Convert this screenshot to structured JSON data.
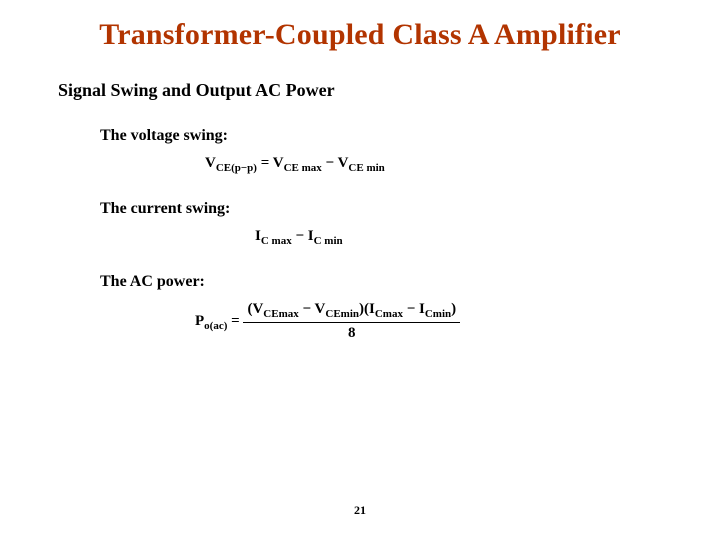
{
  "title": {
    "text": "Transformer-Coupled Class A Amplifier",
    "color": "#b23400"
  },
  "subtitle": "Signal Swing and Output AC Power",
  "items": [
    {
      "label": "The voltage swing:"
    },
    {
      "label": "The current swing:"
    },
    {
      "label": "The AC power:"
    }
  ],
  "formulas": {
    "voltage": {
      "lhs_base": "V",
      "lhs_sub": "CE(p−p)",
      "eq": " = ",
      "t1_base": "V",
      "t1_sub": "CE max",
      "minus": " − ",
      "t2_base": "V",
      "t2_sub": "CE min"
    },
    "current": {
      "t1_base": "I",
      "t1_sub": "C max",
      "minus": " − ",
      "t2_base": "I",
      "t2_sub": "C min"
    },
    "power": {
      "lhs_base": "P",
      "lhs_sub": "o(ac)",
      "eq": " = ",
      "num_open": "(",
      "n1_base": "V",
      "n1_sub": "CEmax",
      "n_minus1": " − ",
      "n2_base": "V",
      "n2_sub": "CEmin",
      "num_mid": ")(",
      "n3_base": "I",
      "n3_sub": "Cmax",
      "n_minus2": " − ",
      "n4_base": "I",
      "n4_sub": "Cmin",
      "num_close": ")",
      "den": "8"
    }
  },
  "pageNumber": "21"
}
